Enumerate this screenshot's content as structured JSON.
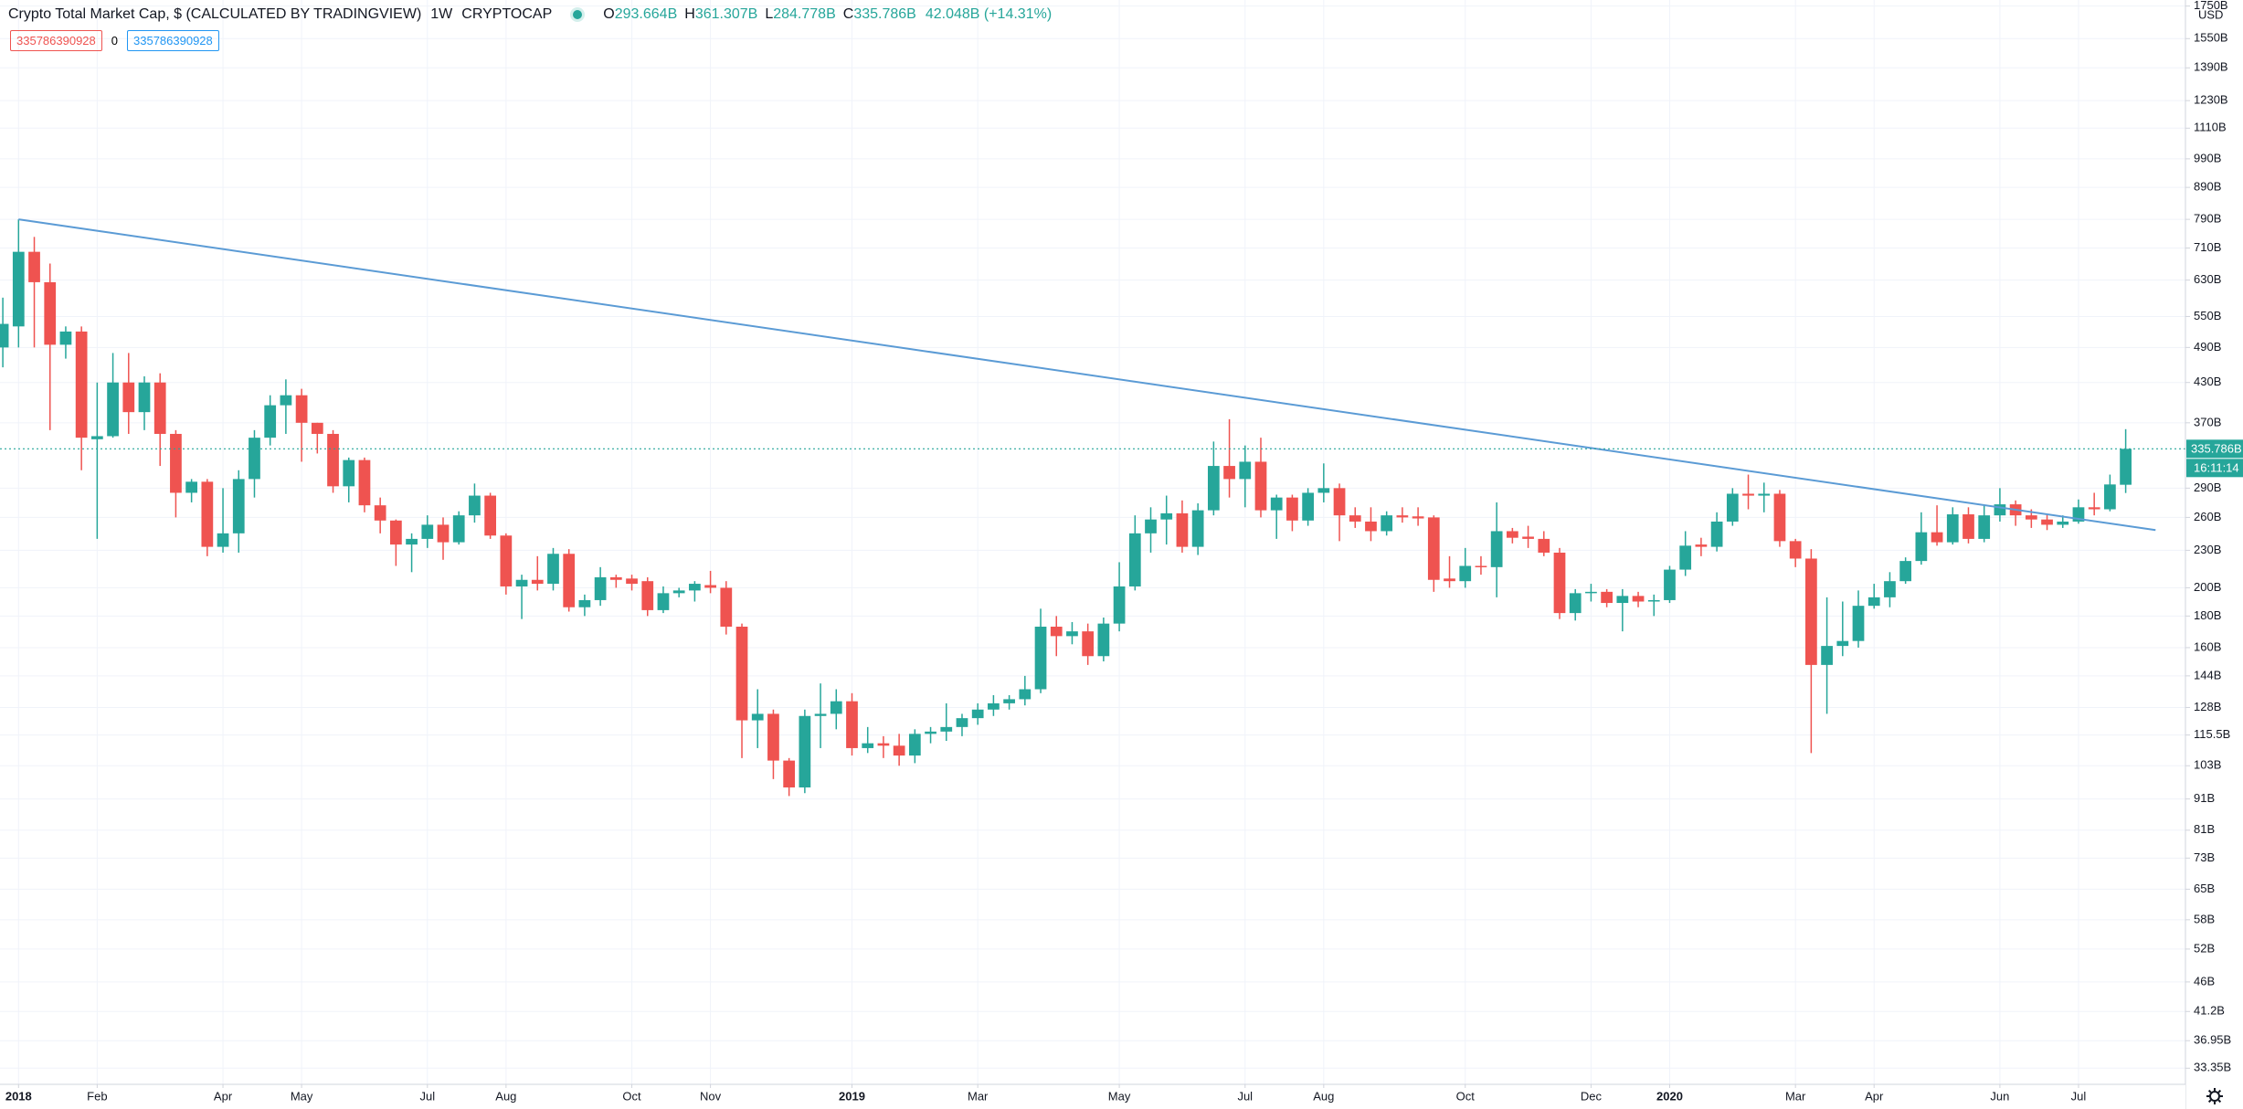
{
  "chart_data": {
    "type": "candlestick",
    "title": "Crypto Total Market Cap, $ (CALCULATED BY TRADINGVIEW)",
    "interval": "1W",
    "symbol": "CRYPTOCAP",
    "legend_values": [
      {
        "key": "O",
        "value": "293.664B"
      },
      {
        "key": "H",
        "value": "361.307B"
      },
      {
        "key": "L",
        "value": "284.778B"
      },
      {
        "key": "C",
        "value": "335.786B"
      }
    ],
    "change": "42.048B (+14.31%)",
    "inputs": [
      "335786390928",
      "0",
      "335786390928"
    ],
    "currency": "USD",
    "last_price_label": "335.786B",
    "countdown": "16:11:14",
    "up_color": "#26a69a",
    "down_color": "#ef5350",
    "log_scale": true,
    "grid": true,
    "ylim": [
      31.4,
      1790
    ],
    "xlim": [
      -0.18,
      138.8
    ],
    "yticks": [
      {
        "value": 1750,
        "label": "1750B"
      },
      {
        "value": 1550,
        "label": "1550B"
      },
      {
        "value": 1390,
        "label": "1390B"
      },
      {
        "value": 1230,
        "label": "1230B"
      },
      {
        "value": 1110,
        "label": "1110B"
      },
      {
        "value": 990,
        "label": "990B"
      },
      {
        "value": 890,
        "label": "890B"
      },
      {
        "value": 790,
        "label": "790B"
      },
      {
        "value": 710,
        "label": "710B"
      },
      {
        "value": 630,
        "label": "630B"
      },
      {
        "value": 550,
        "label": "550B"
      },
      {
        "value": 490,
        "label": "490B"
      },
      {
        "value": 430,
        "label": "430B"
      },
      {
        "value": 370,
        "label": "370B"
      },
      {
        "value": 290,
        "label": "290B"
      },
      {
        "value": 260,
        "label": "260B"
      },
      {
        "value": 230,
        "label": "230B"
      },
      {
        "value": 200,
        "label": "200B"
      },
      {
        "value": 180,
        "label": "180B"
      },
      {
        "value": 160,
        "label": "160B"
      },
      {
        "value": 144,
        "label": "144B"
      },
      {
        "value": 128,
        "label": "128B"
      },
      {
        "value": 115.5,
        "label": "115.5B"
      },
      {
        "value": 103,
        "label": "103B"
      },
      {
        "value": 91,
        "label": "91B"
      },
      {
        "value": 81,
        "label": "81B"
      },
      {
        "value": 73,
        "label": "73B"
      },
      {
        "value": 65,
        "label": "65B"
      },
      {
        "value": 58,
        "label": "58B"
      },
      {
        "value": 52,
        "label": "52B"
      },
      {
        "value": 46,
        "label": "46B"
      },
      {
        "value": 41.2,
        "label": "41.2B"
      },
      {
        "value": 36.95,
        "label": "36.95B"
      },
      {
        "value": 33.35,
        "label": "33.35B"
      }
    ],
    "xticks": [
      {
        "value": 1,
        "label": "2018"
      },
      {
        "value": 6,
        "label": "Feb"
      },
      {
        "value": 14,
        "label": "Apr"
      },
      {
        "value": 19,
        "label": "May"
      },
      {
        "value": 27,
        "label": "Jul"
      },
      {
        "value": 32,
        "label": "Aug"
      },
      {
        "value": 40,
        "label": "Oct"
      },
      {
        "value": 45,
        "label": "Nov"
      },
      {
        "value": 54,
        "label": "2019"
      },
      {
        "value": 62,
        "label": "Mar"
      },
      {
        "value": 71,
        "label": "May"
      },
      {
        "value": 79,
        "label": "Jul"
      },
      {
        "value": 84,
        "label": "Aug"
      },
      {
        "value": 93,
        "label": "Oct"
      },
      {
        "value": 101,
        "label": "Dec"
      },
      {
        "value": 106,
        "label": "2020"
      },
      {
        "value": 114,
        "label": "Mar"
      },
      {
        "value": 119,
        "label": "Apr"
      },
      {
        "value": 127,
        "label": "Jun"
      },
      {
        "value": 132,
        "label": "Jul"
      }
    ],
    "trendline": {
      "color": "#5b9bd5",
      "start": [
        1,
        790
      ],
      "end": [
        136.9,
        248
      ]
    },
    "ohlc": [
      [
        490,
        590,
        455,
        535
      ],
      [
        530,
        790,
        490,
        700
      ],
      [
        700,
        740,
        490,
        625
      ],
      [
        625,
        670,
        360,
        495
      ],
      [
        495,
        530,
        470,
        520
      ],
      [
        520,
        530,
        310,
        350
      ],
      [
        348,
        430,
        240,
        352
      ],
      [
        352,
        480,
        350,
        430
      ],
      [
        430,
        480,
        355,
        385
      ],
      [
        385,
        440,
        360,
        430
      ],
      [
        430,
        445,
        315,
        355
      ],
      [
        355,
        360,
        260,
        285
      ],
      [
        285,
        300,
        275,
        297
      ],
      [
        297,
        300,
        225,
        233
      ],
      [
        233,
        290,
        228,
        245
      ],
      [
        245,
        310,
        228,
        300
      ],
      [
        300,
        360,
        280,
        350
      ],
      [
        350,
        410,
        340,
        395
      ],
      [
        395,
        435,
        355,
        410
      ],
      [
        410,
        420,
        320,
        370
      ],
      [
        370,
        370,
        330,
        355
      ],
      [
        355,
        360,
        285,
        292
      ],
      [
        292,
        325,
        275,
        322
      ],
      [
        322,
        325,
        265,
        272
      ],
      [
        272,
        280,
        245,
        257
      ],
      [
        257,
        258,
        217,
        235
      ],
      [
        235,
        245,
        212,
        240
      ],
      [
        240,
        262,
        232,
        253
      ],
      [
        253,
        260,
        222,
        237
      ],
      [
        237,
        266,
        235,
        262
      ],
      [
        262,
        295,
        255,
        282
      ],
      [
        282,
        285,
        240,
        243
      ],
      [
        243,
        245,
        195,
        201
      ],
      [
        201,
        210,
        178,
        206
      ],
      [
        206,
        225,
        198,
        203
      ],
      [
        203,
        232,
        198,
        227
      ],
      [
        227,
        231,
        183,
        186
      ],
      [
        186,
        195,
        180,
        191
      ],
      [
        191,
        216,
        187,
        208
      ],
      [
        208,
        210,
        200,
        206
      ],
      [
        207,
        210,
        198,
        203
      ],
      [
        205,
        208,
        180,
        184
      ],
      [
        184,
        201,
        182,
        196
      ],
      [
        196,
        200,
        193,
        198
      ],
      [
        198,
        205,
        190,
        203
      ],
      [
        202,
        213,
        196,
        200
      ],
      [
        200,
        205,
        168,
        173
      ],
      [
        173,
        175,
        106,
        122
      ],
      [
        122,
        137,
        110,
        125
      ],
      [
        125,
        127,
        98,
        105
      ],
      [
        105,
        106,
        92,
        95
      ],
      [
        95,
        127,
        93,
        124
      ],
      [
        124,
        140,
        110,
        125
      ],
      [
        125,
        137,
        118,
        131
      ],
      [
        131,
        135,
        107,
        110
      ],
      [
        110,
        119,
        108,
        112
      ],
      [
        112,
        115,
        106,
        111
      ],
      [
        111,
        116,
        103,
        107
      ],
      [
        107,
        118,
        104,
        116
      ],
      [
        116,
        119,
        112,
        117
      ],
      [
        117,
        130,
        113,
        119
      ],
      [
        119,
        125,
        115,
        123
      ],
      [
        123,
        130,
        120,
        127
      ],
      [
        127,
        134,
        124,
        130
      ],
      [
        130,
        134,
        127,
        132
      ],
      [
        132,
        144,
        129,
        137
      ],
      [
        137,
        185,
        135,
        173
      ],
      [
        173,
        180,
        155,
        167
      ],
      [
        167,
        176,
        162,
        170
      ],
      [
        170,
        175,
        150,
        155
      ],
      [
        155,
        179,
        152,
        175
      ],
      [
        175,
        220,
        170,
        201
      ],
      [
        201,
        262,
        198,
        245
      ],
      [
        245,
        270,
        228,
        258
      ],
      [
        258,
        282,
        235,
        264
      ],
      [
        264,
        277,
        228,
        233
      ],
      [
        233,
        274,
        226,
        267
      ],
      [
        267,
        345,
        262,
        315
      ],
      [
        315,
        375,
        280,
        300
      ],
      [
        300,
        340,
        270,
        320
      ],
      [
        320,
        350,
        260,
        267
      ],
      [
        267,
        283,
        240,
        280
      ],
      [
        280,
        283,
        247,
        257
      ],
      [
        257,
        290,
        252,
        285
      ],
      [
        285,
        318,
        275,
        290
      ],
      [
        290,
        295,
        238,
        262
      ],
      [
        262,
        270,
        250,
        256
      ],
      [
        256,
        270,
        238,
        247
      ],
      [
        247,
        266,
        243,
        262
      ],
      [
        262,
        270,
        255,
        260
      ],
      [
        261,
        270,
        252,
        259
      ],
      [
        260,
        262,
        197,
        206
      ],
      [
        207,
        225,
        200,
        205
      ],
      [
        205,
        232,
        200,
        217
      ],
      [
        217,
        225,
        210,
        216
      ],
      [
        216,
        275,
        193,
        247
      ],
      [
        247,
        250,
        236,
        241
      ],
      [
        242,
        252,
        232,
        240
      ],
      [
        240,
        247,
        225,
        228
      ],
      [
        228,
        232,
        178,
        182
      ],
      [
        182,
        199,
        177,
        196
      ],
      [
        196,
        203,
        190,
        197
      ],
      [
        197,
        199,
        186,
        189
      ],
      [
        189,
        199,
        170,
        194
      ],
      [
        194,
        197,
        186,
        190
      ],
      [
        190,
        195,
        180,
        191
      ],
      [
        191,
        217,
        189,
        214
      ],
      [
        214,
        247,
        209,
        234
      ],
      [
        235,
        241,
        225,
        233
      ],
      [
        233,
        265,
        229,
        256
      ],
      [
        256,
        290,
        252,
        284
      ],
      [
        284,
        305,
        268,
        282
      ],
      [
        282,
        296,
        265,
        284
      ],
      [
        284,
        288,
        233,
        238
      ],
      [
        238,
        240,
        216,
        223
      ],
      [
        223,
        231,
        108,
        150
      ],
      [
        150,
        193,
        125,
        161
      ],
      [
        161,
        190,
        155,
        164
      ],
      [
        164,
        198,
        160,
        187
      ],
      [
        187,
        203,
        185,
        193
      ],
      [
        193,
        212,
        186,
        205
      ],
      [
        205,
        224,
        203,
        221
      ],
      [
        221,
        265,
        218,
        246
      ],
      [
        246,
        272,
        234,
        237
      ],
      [
        237,
        270,
        235,
        263
      ],
      [
        263,
        270,
        236,
        240
      ],
      [
        240,
        272,
        237,
        262
      ],
      [
        262,
        290,
        256,
        273
      ],
      [
        273,
        277,
        252,
        262
      ],
      [
        262,
        268,
        250,
        258
      ],
      [
        258,
        263,
        248,
        253
      ],
      [
        253,
        262,
        250,
        256
      ],
      [
        256,
        278,
        254,
        270
      ],
      [
        270,
        285,
        262,
        268
      ],
      [
        268,
        305,
        266,
        294
      ],
      [
        293.664,
        361.307,
        284.778,
        335.786
      ]
    ]
  }
}
